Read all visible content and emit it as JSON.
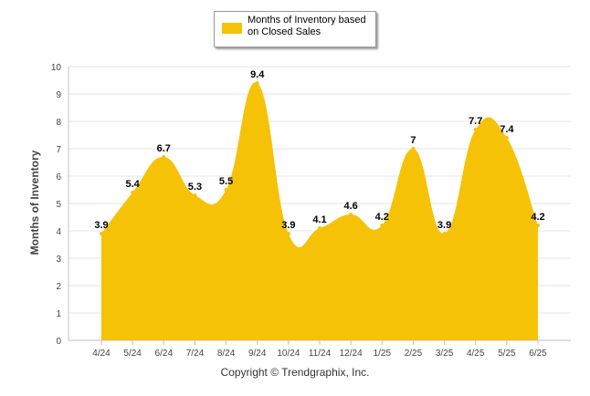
{
  "chart_data": {
    "type": "area",
    "categories": [
      "4/24",
      "5/24",
      "6/24",
      "7/24",
      "8/24",
      "9/24",
      "10/24",
      "11/24",
      "12/24",
      "1/25",
      "2/25",
      "3/25",
      "4/25",
      "5/25",
      "6/25"
    ],
    "series": [
      {
        "name": "Months of Inventory based on Closed Sales",
        "values": [
          3.9,
          5.4,
          6.7,
          5.3,
          5.5,
          9.4,
          3.9,
          4.1,
          4.6,
          4.2,
          7,
          3.9,
          7.7,
          7.4,
          4.2
        ]
      }
    ],
    "data_labels": [
      "3.9",
      "5.4",
      "6.7",
      "5.3",
      "5.5",
      "9.4",
      "3.9",
      "4.1",
      "4.6",
      "4.2",
      "7",
      "3.9",
      "7.7",
      "7.4",
      "4.2"
    ],
    "ylabel": "Months of Inventory",
    "xlabel": "",
    "ylim": [
      0,
      10
    ],
    "yticks": [
      "0",
      "1",
      "2",
      "3",
      "4",
      "5",
      "6",
      "7",
      "8",
      "9",
      "10"
    ],
    "grid": true,
    "legend_placement": "top-center",
    "color": "#F5C208"
  },
  "legend": {
    "label": "Months of Inventory based on Closed Sales"
  },
  "footer": {
    "copyright": "Copyright © Trendgraphix, Inc."
  },
  "colors": {
    "area": "#F5C208",
    "grid": "#e6e6e6",
    "axis": "#c0c0c0"
  }
}
